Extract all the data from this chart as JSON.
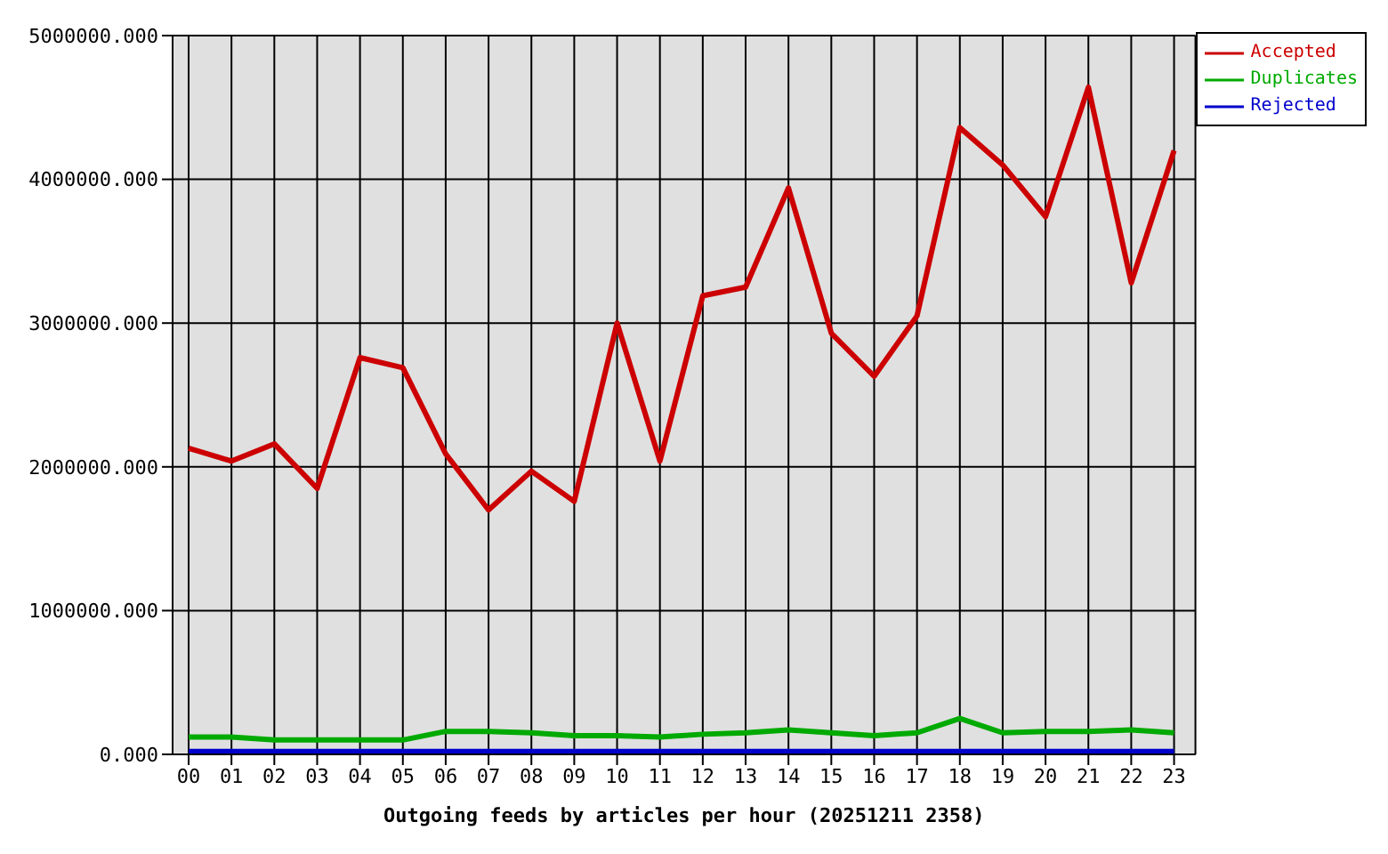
{
  "chart_data": {
    "type": "line",
    "xlabel": "Outgoing feeds by articles per hour (20251211 2358)",
    "categories": [
      "00",
      "01",
      "02",
      "03",
      "04",
      "05",
      "06",
      "07",
      "08",
      "09",
      "10",
      "11",
      "12",
      "13",
      "14",
      "15",
      "16",
      "17",
      "18",
      "19",
      "20",
      "21",
      "22",
      "23"
    ],
    "series": [
      {
        "name": "Accepted",
        "color": "#cc0000",
        "values": [
          2130000,
          2040000,
          2160000,
          1850000,
          2760000,
          2690000,
          2090000,
          1700000,
          1970000,
          1760000,
          3000000,
          2040000,
          3190000,
          3250000,
          3940000,
          2930000,
          2630000,
          3050000,
          4360000,
          4100000,
          3740000,
          4640000,
          3280000,
          4200000
        ]
      },
      {
        "name": "Duplicates",
        "color": "#00aa00",
        "values": [
          120000,
          120000,
          100000,
          100000,
          100000,
          100000,
          160000,
          160000,
          150000,
          130000,
          130000,
          120000,
          140000,
          150000,
          170000,
          150000,
          130000,
          150000,
          250000,
          150000,
          160000,
          160000,
          170000,
          150000
        ]
      },
      {
        "name": "Rejected",
        "color": "#0000cc",
        "values": [
          20000,
          20000,
          20000,
          20000,
          20000,
          20000,
          20000,
          20000,
          20000,
          20000,
          20000,
          20000,
          20000,
          20000,
          20000,
          20000,
          20000,
          20000,
          20000,
          20000,
          20000,
          20000,
          20000,
          20000
        ]
      }
    ],
    "ylim": [
      0,
      5000000
    ],
    "yticks": [
      {
        "value": 0,
        "label": "0.000"
      },
      {
        "value": 1000000,
        "label": "1000000.000"
      },
      {
        "value": 2000000,
        "label": "2000000.000"
      },
      {
        "value": 3000000,
        "label": "3000000.000"
      },
      {
        "value": 4000000,
        "label": "4000000.000"
      },
      {
        "value": 5000000,
        "label": "5000000.000"
      }
    ],
    "grid": true,
    "legend": "top right",
    "marker": "none",
    "line_style": "solid"
  }
}
